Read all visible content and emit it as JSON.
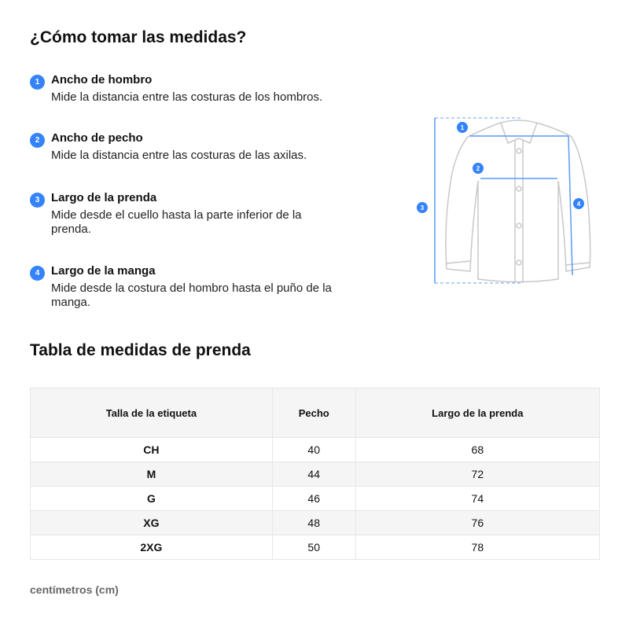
{
  "title": "¿Cómo tomar las medidas?",
  "steps": [
    {
      "n": "1",
      "title": "Ancho de hombro",
      "desc": "Mide la distancia entre las costuras de los hombros."
    },
    {
      "n": "2",
      "title": "Ancho de pecho",
      "desc": "Mide la distancia entre las costuras de las axilas."
    },
    {
      "n": "3",
      "title": "Largo de la prenda",
      "desc": "Mide desde el cuello hasta la parte inferior de la prenda."
    },
    {
      "n": "4",
      "title": "Largo de la manga",
      "desc": "Mide desde la costura del hombro hasta el puño de la manga."
    }
  ],
  "table_title": "Tabla de medidas de prenda",
  "table": {
    "headers": [
      "Talla de la etiqueta",
      "Pecho",
      "Largo de la prenda"
    ],
    "rows": [
      [
        "CH",
        "40",
        "68"
      ],
      [
        "M",
        "44",
        "72"
      ],
      [
        "G",
        "46",
        "74"
      ],
      [
        "XG",
        "48",
        "76"
      ],
      [
        "2XG",
        "50",
        "78"
      ]
    ]
  },
  "unit": "centímetros (cm)",
  "colors": {
    "accent": "#3483fa"
  }
}
